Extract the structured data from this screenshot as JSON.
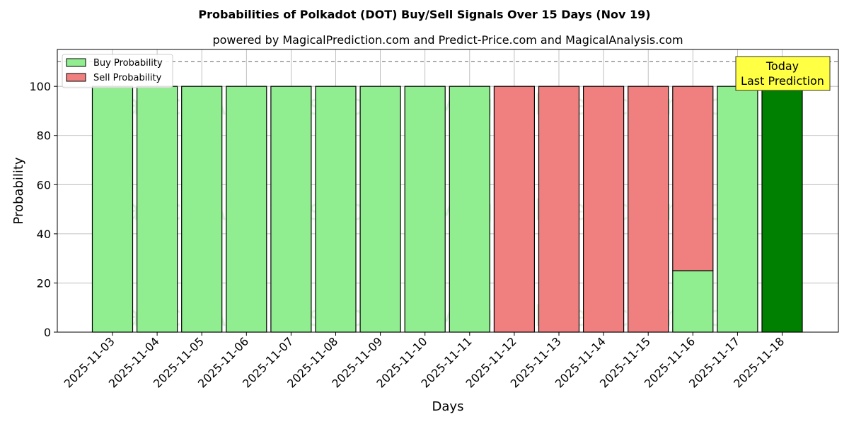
{
  "chart_data": {
    "type": "bar",
    "title": "Probabilities of Polkadot (DOT) Buy/Sell Signals Over 15 Days (Nov 19)",
    "subtitle": "powered by MagicalPrediction.com and Predict-Price.com and MagicalAnalysis.com",
    "xlabel": "Days",
    "ylabel": "Probability",
    "ylim": [
      0,
      115
    ],
    "yticks": [
      0,
      20,
      40,
      60,
      80,
      100
    ],
    "grid": true,
    "legend_position": "top-left",
    "reference_line": 110,
    "categories": [
      "2025-11-03",
      "2025-11-04",
      "2025-11-05",
      "2025-11-06",
      "2025-11-07",
      "2025-11-08",
      "2025-11-09",
      "2025-11-10",
      "2025-11-11",
      "2025-11-12",
      "2025-11-13",
      "2025-11-14",
      "2025-11-15",
      "2025-11-16",
      "2025-11-17",
      "2025-11-18"
    ],
    "series": [
      {
        "name": "Buy Probability",
        "color": "#90ee90",
        "values": [
          100,
          100,
          100,
          100,
          100,
          100,
          100,
          100,
          100,
          0,
          0,
          0,
          0,
          25,
          100,
          100
        ]
      },
      {
        "name": "Sell Probability",
        "color": "#f08080",
        "values": [
          0,
          0,
          0,
          0,
          0,
          0,
          0,
          0,
          0,
          100,
          100,
          100,
          100,
          75,
          0,
          0
        ]
      }
    ],
    "highlight": {
      "index": 15,
      "color": "#008000"
    },
    "annotation": {
      "lines": [
        "Today",
        "Last Prediction"
      ],
      "background": "#ffff44",
      "position": "top-right"
    },
    "watermarks": [
      "MagicalAnalysis.com",
      "MagicalPrediction.com"
    ]
  }
}
